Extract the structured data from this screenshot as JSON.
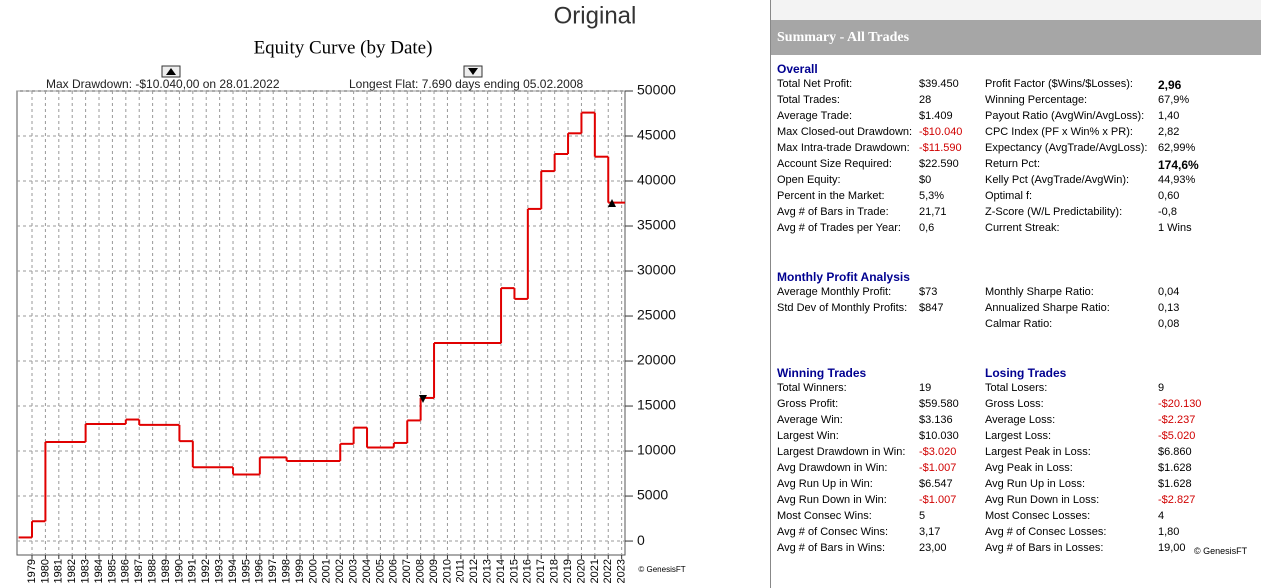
{
  "header": {
    "label": "Original"
  },
  "chart_data": {
    "type": "step",
    "title": "Equity Curve (by Date)",
    "annotations": [
      "Max Drawdown: -$10.040,00 on 28.01.2022",
      "Longest Flat: 7.690 days ending 05.02.2008"
    ],
    "footer": "© GenesisFT",
    "x": [
      1978,
      1979,
      1980,
      1983,
      1986,
      1987,
      1990,
      1991,
      1994,
      1996,
      1998,
      2002,
      2003,
      2004,
      2006,
      2007,
      2008,
      2009,
      2014,
      2015,
      2016,
      2017,
      2018,
      2019,
      2020,
      2021,
      2022
    ],
    "values": [
      400,
      2200,
      11000,
      13000,
      13500,
      12900,
      11100,
      8200,
      7400,
      9300,
      8900,
      10800,
      12600,
      10400,
      10900,
      13400,
      15900,
      22000,
      28100,
      26900,
      36900,
      41100,
      43000,
      45300,
      47600,
      42700,
      37600
    ],
    "color": "#e00000",
    "xlim": [
      1977.88,
      2023.25
    ],
    "xticks": [
      1979,
      1980,
      1981,
      1982,
      1983,
      1984,
      1985,
      1986,
      1987,
      1988,
      1989,
      1990,
      1991,
      1992,
      1993,
      1994,
      1995,
      1996,
      1997,
      1998,
      1999,
      2000,
      2001,
      2002,
      2003,
      2004,
      2005,
      2006,
      2007,
      2008,
      2009,
      2010,
      2011,
      2012,
      2013,
      2014,
      2015,
      2016,
      2017,
      2018,
      2019,
      2020,
      2021,
      2022,
      2023
    ],
    "ylim": [
      -1550,
      50000
    ],
    "yticks": [
      0,
      5000,
      10000,
      15000,
      20000,
      25000,
      30000,
      35000,
      40000,
      45000,
      50000
    ],
    "grid": true
  },
  "summary": {
    "title": "Summary - All Trades",
    "footer": "© GenesisFT",
    "sections": [
      {
        "headings": [
          "Overall",
          null
        ],
        "rows": [
          [
            "Total Net Profit:",
            "$39.450",
            "Profit Factor ($Wins/$Losses):",
            "2,96"
          ],
          [
            "Total Trades:",
            "28",
            "Winning Percentage:",
            "67,9%"
          ],
          [
            "Average Trade:",
            "$1.409",
            "Payout Ratio (AvgWin/AvgLoss):",
            "1,40"
          ],
          [
            "Max Closed-out Drawdown:",
            "-$10.040",
            "CPC Index (PF x Win% x PR):",
            "2,82"
          ],
          [
            "Max Intra-trade Drawdown:",
            "-$11.590",
            "Expectancy (AvgTrade/AvgLoss):",
            "62,99%"
          ],
          [
            "Account Size Required:",
            "$22.590",
            "Return Pct:",
            "174,6%"
          ],
          [
            "Open Equity:",
            "$0",
            "Kelly Pct (AvgTrade/AvgWin):",
            "44,93%"
          ],
          [
            "Percent in the Market:",
            "5,3%",
            "Optimal f:",
            "0,60"
          ],
          [
            "Avg # of Bars in Trade:",
            "21,71",
            "Z-Score (W/L Predictability):",
            "-0,8"
          ],
          [
            "Avg # of Trades per Year:",
            "0,6",
            "Current Streak:",
            "1 Wins"
          ]
        ]
      },
      {
        "headings": [
          "Monthly Profit Analysis",
          null
        ],
        "rows": [
          [
            "Average Monthly Profit:",
            "$73",
            "Monthly Sharpe Ratio:",
            "0,04"
          ],
          [
            "Std Dev of Monthly Profits:",
            "$847",
            "Annualized Sharpe Ratio:",
            "0,13"
          ],
          [
            null,
            null,
            "Calmar Ratio:",
            "0,08"
          ]
        ]
      },
      {
        "headings": [
          "Winning Trades",
          "Losing Trades"
        ],
        "rows": [
          [
            "Total Winners:",
            "19",
            "Total Losers:",
            "9"
          ],
          [
            "Gross Profit:",
            "$59.580",
            "Gross Loss:",
            "-$20.130"
          ],
          [
            "Average Win:",
            "$3.136",
            "Average Loss:",
            "-$2.237"
          ],
          [
            "Largest Win:",
            "$10.030",
            "Largest Loss:",
            "-$5.020"
          ],
          [
            "Largest Drawdown in Win:",
            "-$3.020",
            "Largest Peak in Loss:",
            "$6.860"
          ],
          [
            "Avg Drawdown in Win:",
            "-$1.007",
            "Avg Peak in Loss:",
            "$1.628"
          ],
          [
            "Avg Run Up in Win:",
            "$6.547",
            "Avg Run Up in Loss:",
            "$1.628"
          ],
          [
            "Avg Run Down in Win:",
            "-$1.007",
            "Avg Run Down in Loss:",
            "-$2.827"
          ],
          [
            "Most Consec Wins:",
            "5",
            "Most Consec Losses:",
            "4"
          ],
          [
            "Avg # of Consec Wins:",
            "3,17",
            "Avg # of Consec Losses:",
            "1,80"
          ],
          [
            "Avg # of Bars in Wins:",
            "23,00",
            "Avg # of Bars in Losses:",
            "19,00"
          ]
        ]
      }
    ]
  }
}
